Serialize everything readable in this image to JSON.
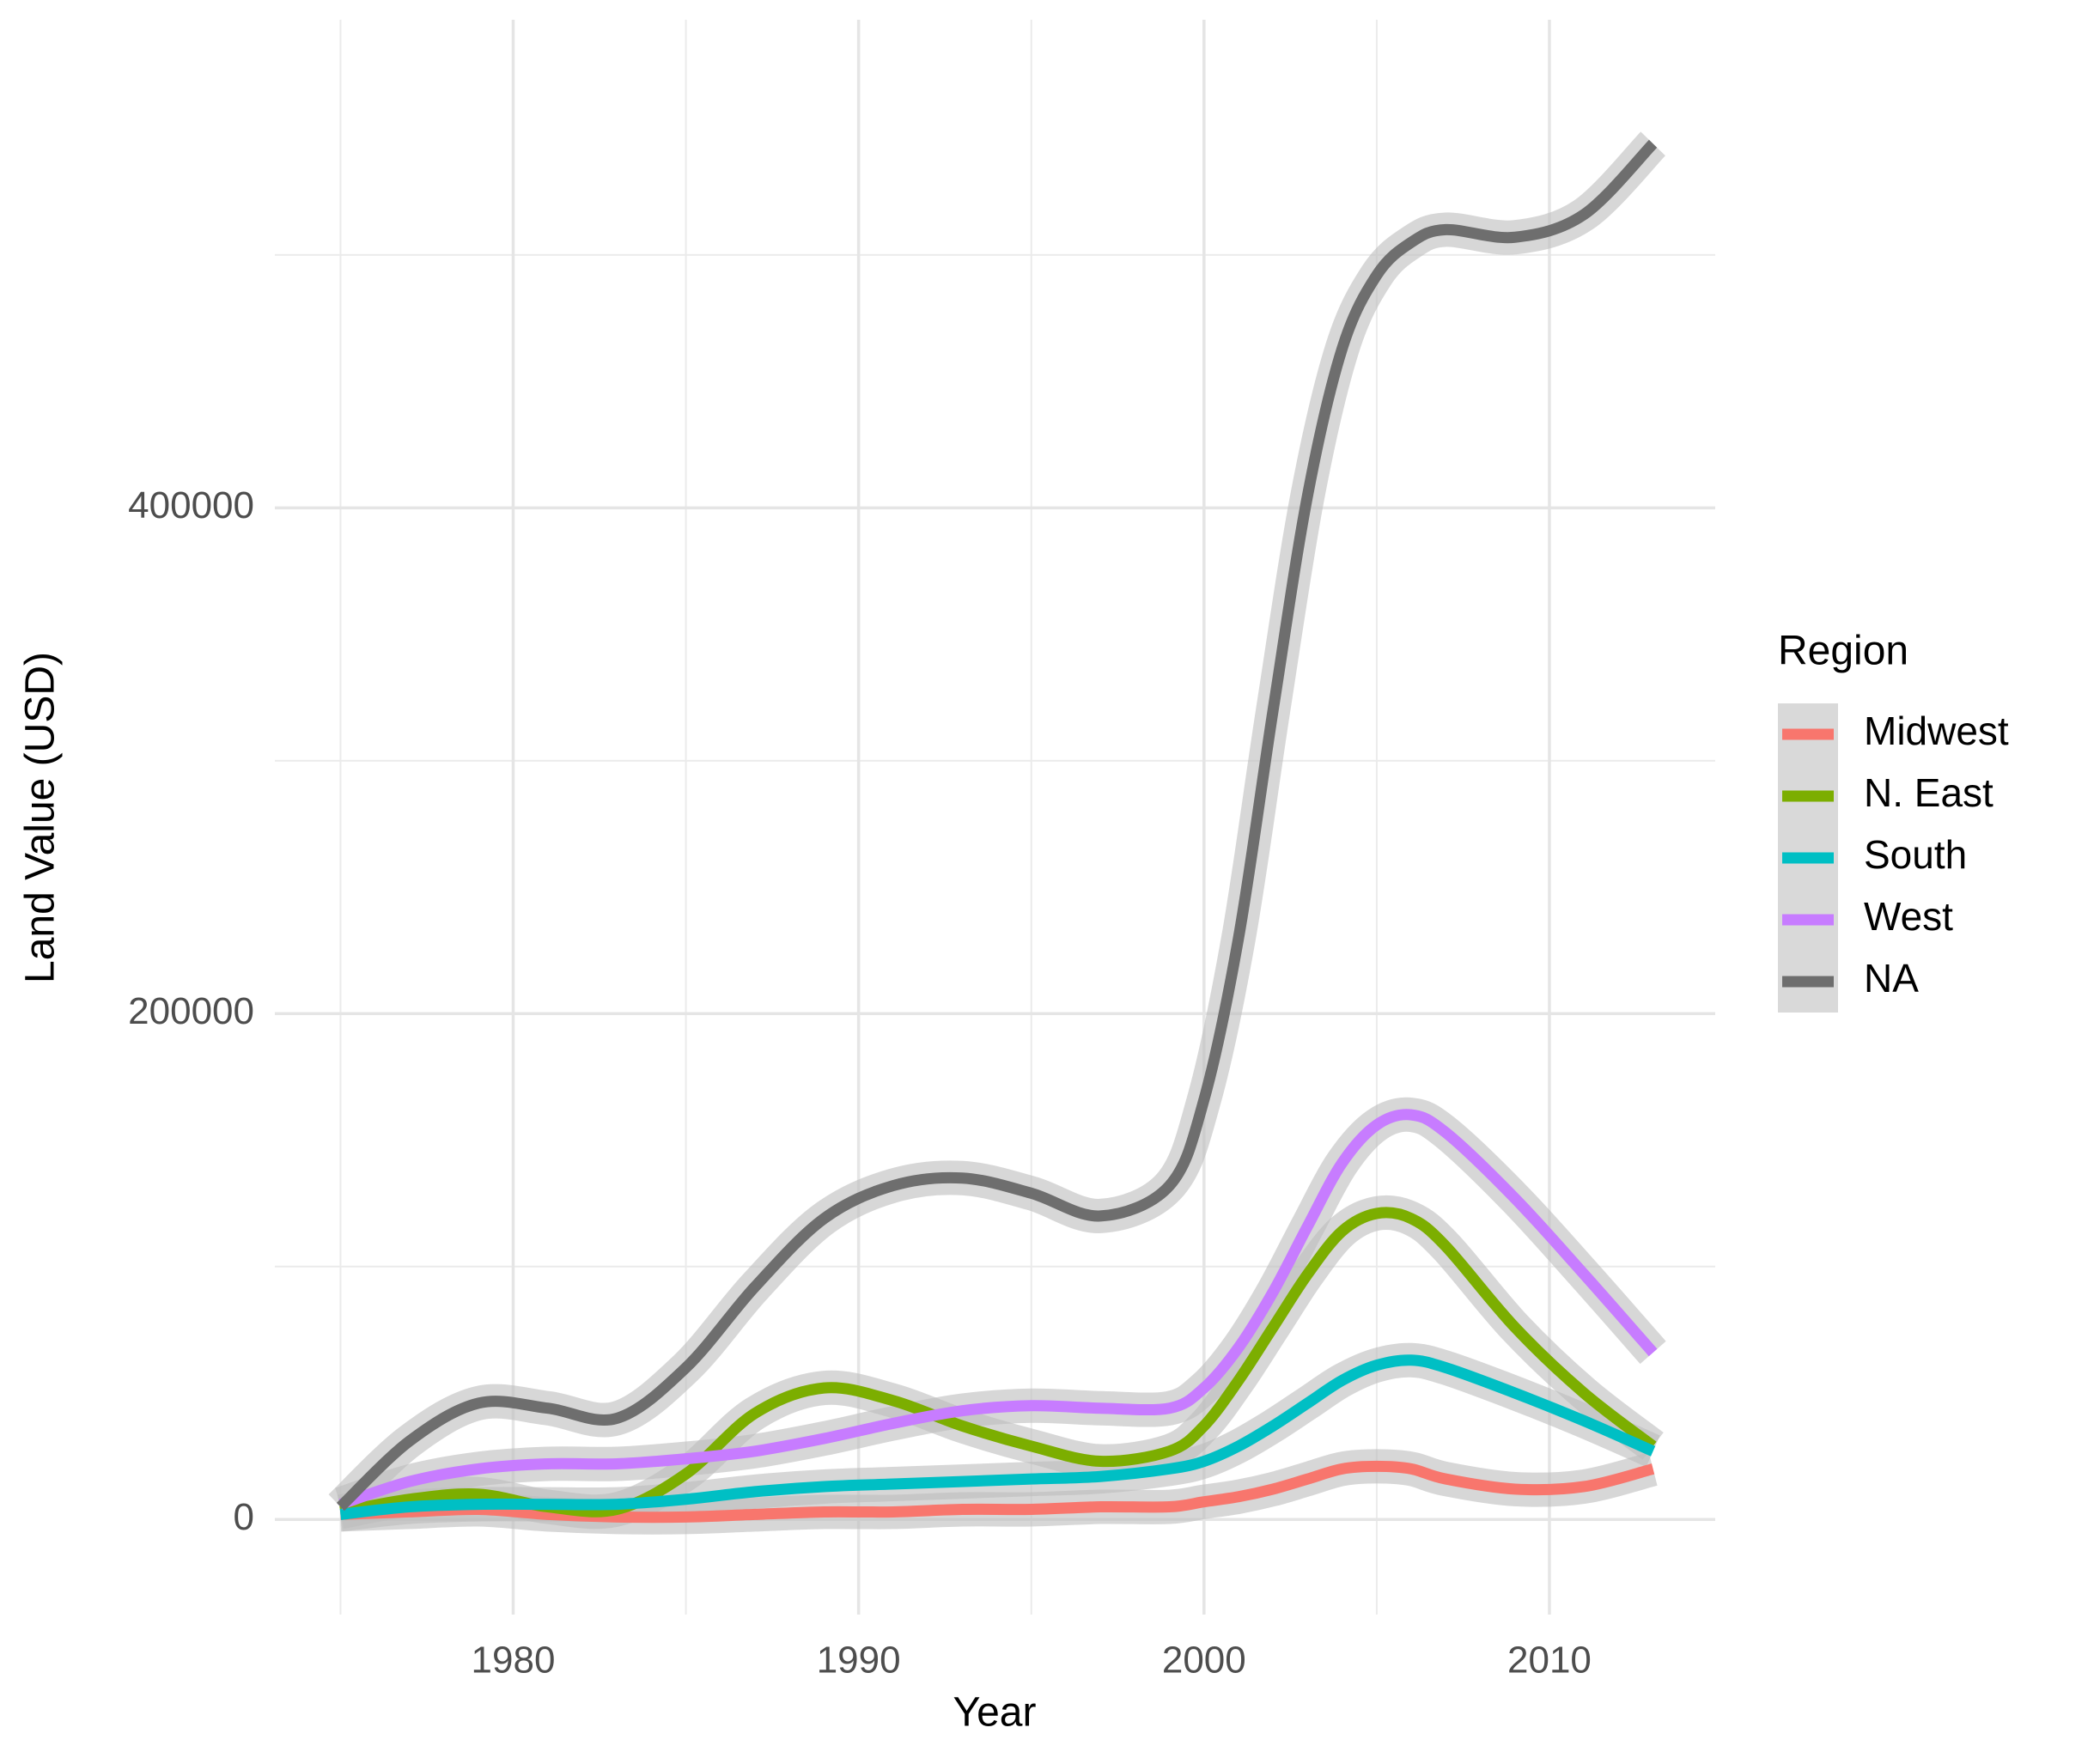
{
  "chart_data": {
    "type": "line",
    "x_label": "Year",
    "y_label": "Land Value (USD)",
    "x": [
      1975,
      1977,
      1979,
      1981,
      1983,
      1985,
      1987,
      1989,
      1991,
      1993,
      1995,
      1997,
      1999,
      2000,
      2001,
      2002,
      2003,
      2004,
      2005,
      2006,
      2007,
      2009,
      2011,
      2013
    ],
    "series": [
      {
        "name": "Midwest",
        "color": "#F8766D",
        "values": [
          2000,
          3000,
          4000,
          2000,
          1000,
          1000,
          2000,
          3000,
          3000,
          4000,
          4000,
          5000,
          5000,
          7000,
          9000,
          12000,
          16000,
          20000,
          21000,
          20000,
          16000,
          12000,
          13000,
          20000
        ]
      },
      {
        "name": "N. East",
        "color": "#7CAE00",
        "values": [
          3000,
          8000,
          10000,
          5000,
          4000,
          18000,
          42000,
          52000,
          47000,
          37000,
          29000,
          23000,
          27000,
          37000,
          55000,
          76000,
          97000,
          114000,
          121000,
          119000,
          108000,
          76000,
          50000,
          29000
        ]
      },
      {
        "name": "South",
        "color": "#00BFC4",
        "values": [
          2000,
          5000,
          6000,
          6000,
          6000,
          8000,
          11000,
          13000,
          14000,
          15000,
          16000,
          17000,
          20000,
          23000,
          29000,
          37000,
          46000,
          55000,
          61000,
          63000,
          60000,
          50000,
          39000,
          27000
        ]
      },
      {
        "name": "West",
        "color": "#C77CFF",
        "values": [
          6000,
          15000,
          20000,
          22000,
          22000,
          24000,
          27000,
          32000,
          38000,
          43000,
          45000,
          44000,
          44000,
          52000,
          68000,
          90000,
          116000,
          141000,
          156000,
          160000,
          153000,
          127000,
          97000,
          66000
        ]
      },
      {
        "name": "NA",
        "color": "#6E6E6E",
        "values": [
          5000,
          31000,
          46000,
          44000,
          40000,
          60000,
          92000,
          119000,
          132000,
          135000,
          129000,
          120000,
          132000,
          166000,
          230000,
          320000,
          405000,
          463000,
          492000,
          505000,
          510000,
          507000,
          516000,
          544000
        ]
      }
    ],
    "xlim": [
      1973.1,
      2014.8
    ],
    "ylim": [
      -37600,
      593000
    ],
    "xticks": [
      1980,
      1990,
      2000,
      2010
    ],
    "yticks": [
      0,
      200000,
      400000
    ],
    "xminor": [
      1975,
      1985,
      1995,
      2005
    ],
    "yminor": [
      100000,
      300000,
      500000
    ],
    "grid": true,
    "smooth_band": true,
    "legend_title": "Region",
    "legend_position": "right"
  }
}
